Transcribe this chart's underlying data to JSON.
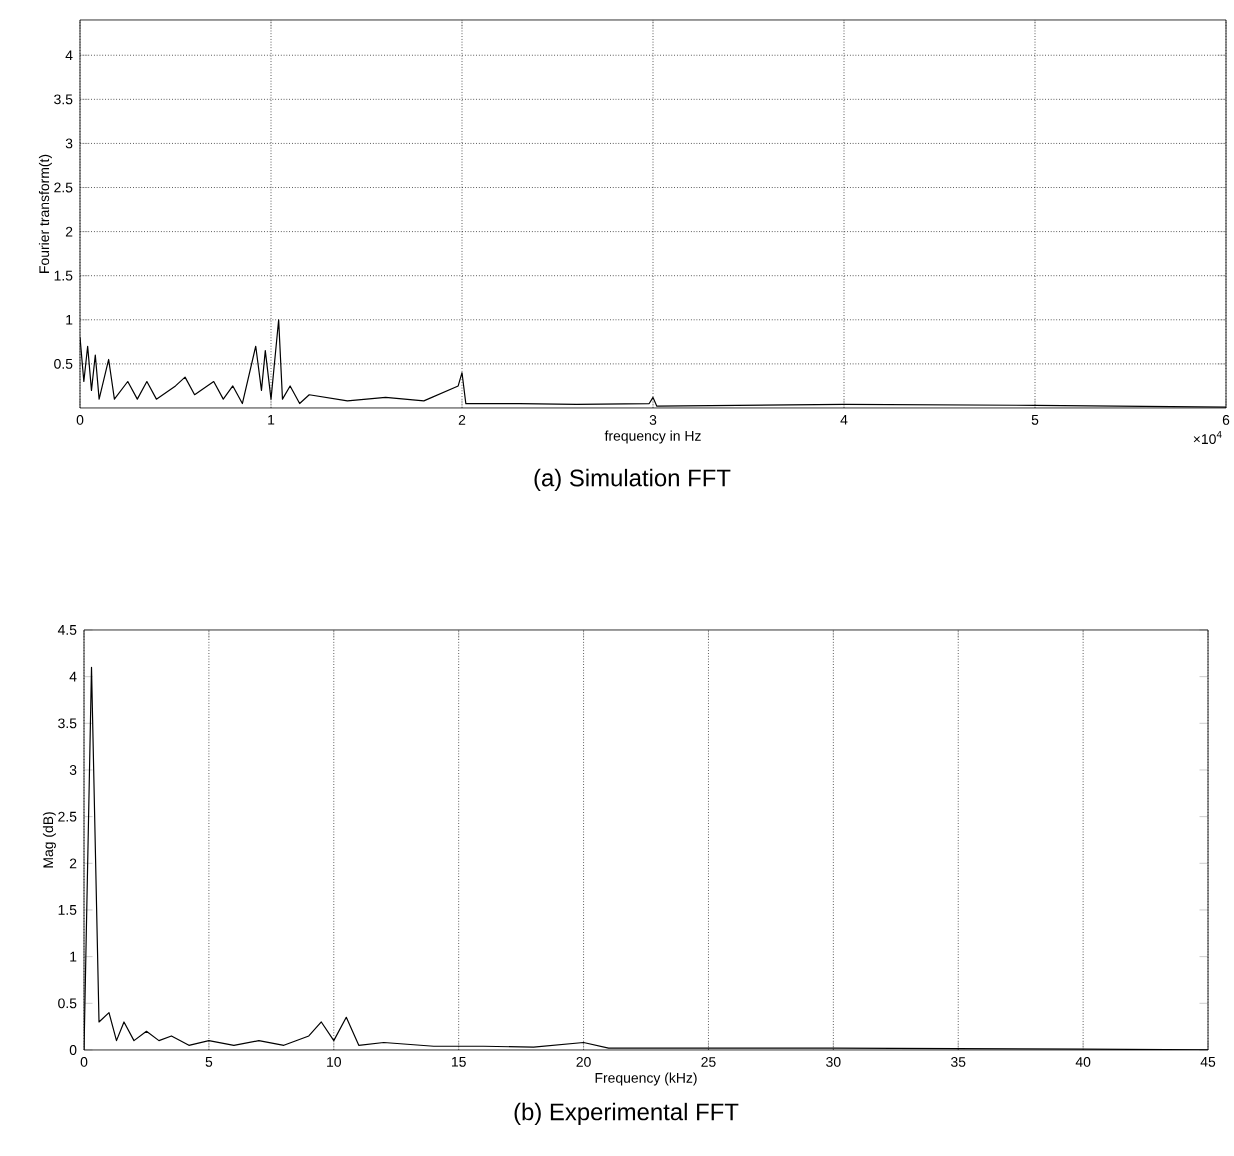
{
  "chart_data": [
    {
      "type": "line",
      "title": "(a) Simulation FFT",
      "xlabel": "frequency in Hz",
      "ylabel": "Fourier transform(t)",
      "color": "#000000",
      "grid": true,
      "xlim": [
        0,
        6
      ],
      "ylim": [
        0,
        4.4
      ],
      "xticks": [
        0,
        1,
        2,
        3,
        4,
        5,
        6
      ],
      "yticks": [
        0.5,
        1,
        1.5,
        2,
        2.5,
        3,
        3.5,
        4
      ],
      "annotations": [
        "×10$^{4}$"
      ],
      "x": [
        0,
        0.02,
        0.04,
        0.06,
        0.08,
        0.1,
        0.15,
        0.18,
        0.25,
        0.3,
        0.35,
        0.4,
        0.5,
        0.55,
        0.6,
        0.7,
        0.75,
        0.8,
        0.85,
        0.92,
        0.95,
        0.97,
        1.0,
        1.04,
        1.06,
        1.1,
        1.15,
        1.2,
        1.4,
        1.6,
        1.8,
        1.98,
        2.0,
        2.02,
        2.3,
        2.6,
        2.98,
        3.0,
        3.02,
        4.0,
        5.0,
        6.0
      ],
      "values": [
        0.8,
        0.3,
        0.7,
        0.2,
        0.6,
        0.1,
        0.55,
        0.1,
        0.3,
        0.1,
        0.3,
        0.1,
        0.25,
        0.35,
        0.15,
        0.3,
        0.1,
        0.25,
        0.05,
        0.7,
        0.2,
        0.65,
        0.1,
        1.0,
        0.1,
        0.25,
        0.05,
        0.15,
        0.08,
        0.12,
        0.08,
        0.25,
        0.4,
        0.05,
        0.05,
        0.04,
        0.05,
        0.12,
        0.02,
        0.04,
        0.03,
        0.01
      ]
    },
    {
      "type": "line",
      "title": "(b) Experimental FFT",
      "xlabel": "Frequency (kHz)",
      "ylabel": "Mag (dB)",
      "color": "#000000",
      "grid": "x",
      "xlim": [
        0,
        45
      ],
      "ylim": [
        0,
        4.5
      ],
      "xticks": [
        0,
        5,
        10,
        15,
        20,
        25,
        30,
        35,
        40,
        45
      ],
      "yticks": [
        0,
        0.5,
        1,
        1.5,
        2,
        2.5,
        3,
        3.5,
        4,
        4.5
      ],
      "x": [
        0,
        0.3,
        0.6,
        1,
        1.3,
        1.6,
        2,
        2.5,
        3,
        3.5,
        4.2,
        5,
        6,
        7,
        8,
        9,
        9.5,
        10,
        10.5,
        11,
        12,
        14,
        16,
        18,
        20,
        21,
        25,
        30,
        40,
        45
      ],
      "values": [
        0,
        4.1,
        0.3,
        0.4,
        0.1,
        0.3,
        0.1,
        0.2,
        0.1,
        0.15,
        0.05,
        0.1,
        0.05,
        0.1,
        0.05,
        0.15,
        0.3,
        0.1,
        0.35,
        0.05,
        0.08,
        0.04,
        0.04,
        0.03,
        0.08,
        0.02,
        0.02,
        0.02,
        0.01,
        0.0
      ]
    }
  ]
}
